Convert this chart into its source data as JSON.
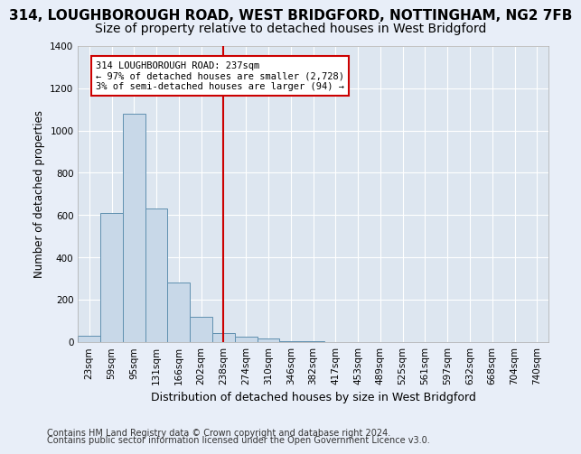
{
  "title1": "314, LOUGHBOROUGH ROAD, WEST BRIDGFORD, NOTTINGHAM, NG2 7FB",
  "title2": "Size of property relative to detached houses in West Bridgford",
  "xlabel": "Distribution of detached houses by size in West Bridgford",
  "ylabel": "Number of detached properties",
  "footnote1": "Contains HM Land Registry data © Crown copyright and database right 2024.",
  "footnote2": "Contains public sector information licensed under the Open Government Licence v3.0.",
  "bin_labels": [
    "23sqm",
    "59sqm",
    "95sqm",
    "131sqm",
    "166sqm",
    "202sqm",
    "238sqm",
    "274sqm",
    "310sqm",
    "346sqm",
    "382sqm",
    "417sqm",
    "453sqm",
    "489sqm",
    "525sqm",
    "561sqm",
    "597sqm",
    "632sqm",
    "668sqm",
    "704sqm",
    "740sqm"
  ],
  "bar_values": [
    30,
    610,
    1080,
    630,
    280,
    120,
    40,
    25,
    15,
    5,
    2,
    0,
    0,
    0,
    0,
    0,
    0,
    0,
    0,
    0,
    0
  ],
  "bar_color": "#c8d8e8",
  "bar_edge_color": "#6090b0",
  "vline_x": 6,
  "vline_color": "#cc0000",
  "annotation_text": "314 LOUGHBOROUGH ROAD: 237sqm\n← 97% of detached houses are smaller (2,728)\n3% of semi-detached houses are larger (94) →",
  "annotation_box_color": "#cc0000",
  "ylim": [
    0,
    1400
  ],
  "yticks": [
    0,
    200,
    400,
    600,
    800,
    1000,
    1200,
    1400
  ],
  "background_color": "#dde6f0",
  "grid_color": "#ffffff",
  "title1_fontsize": 11,
  "title2_fontsize": 10,
  "xlabel_fontsize": 9,
  "ylabel_fontsize": 8.5,
  "tick_fontsize": 7.5,
  "footnote_fontsize": 7
}
